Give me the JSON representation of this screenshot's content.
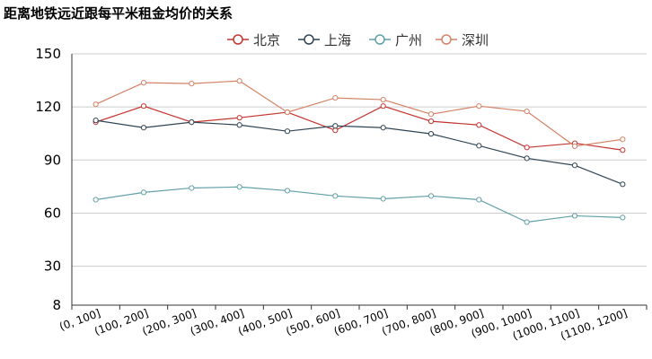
{
  "chart_data": {
    "type": "line",
    "title": "距离地铁远近跟每平米租金均价的关系",
    "categories": [
      "(0, 100]",
      "(100, 200]",
      "(200, 300]",
      "(300, 400]",
      "(400, 500]",
      "(500, 600]",
      "(600, 700]",
      "(700, 800]",
      "(800, 900]",
      "(900, 1000]",
      "(1000, 1100]",
      "(1100, 1200]"
    ],
    "ylim": [
      8,
      150
    ],
    "yticks": [
      8,
      30,
      60,
      90,
      120,
      150
    ],
    "grid": true,
    "legend_position": "top-center",
    "series": [
      {
        "name": "北京",
        "color": "#c23531",
        "values": [
          111.4,
          120.5,
          111.4,
          113.9,
          117.0,
          106.8,
          120.5,
          111.9,
          109.8,
          97.1,
          99.5,
          95.6
        ]
      },
      {
        "name": "上海",
        "color": "#2f4554",
        "values": [
          112.4,
          108.3,
          111.4,
          109.8,
          106.3,
          109.3,
          108.3,
          104.8,
          98.1,
          91.0,
          87.0,
          76.3
        ]
      },
      {
        "name": "广州",
        "color": "#61a0a8",
        "values": [
          67.6,
          71.7,
          74.2,
          74.8,
          72.7,
          69.7,
          68.1,
          69.7,
          67.6,
          54.9,
          58.5,
          57.5
        ]
      },
      {
        "name": "深圳",
        "color": "#d48265",
        "values": [
          121.5,
          133.7,
          133.2,
          134.7,
          117.0,
          125.1,
          124.1,
          115.9,
          120.5,
          117.5,
          97.8,
          101.7
        ]
      }
    ]
  }
}
